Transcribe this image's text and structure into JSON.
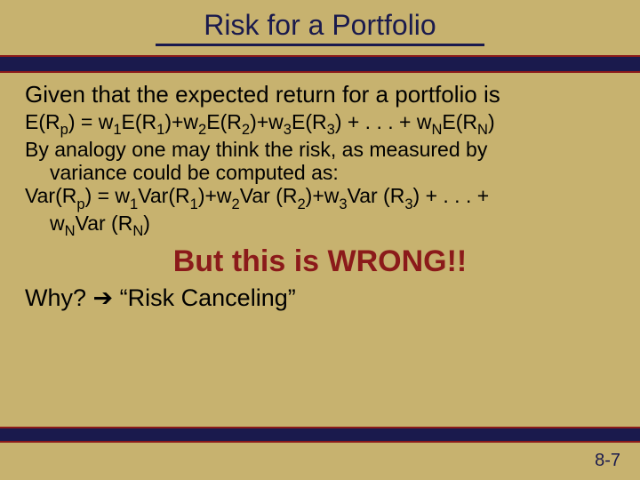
{
  "colors": {
    "background": "#c7b26f",
    "nav_bar": "#1a1a4d",
    "accent_line": "#8b1a1a",
    "title_text": "#1a1a4d",
    "body_text": "#000000",
    "emphasis_text": "#8b1a1a"
  },
  "typography": {
    "font_family": "Arial",
    "title_fontsize": 32,
    "lead_fontsize": 26,
    "body_fontsize": 23,
    "emphasis_fontsize": 34,
    "why_fontsize": 27,
    "pagenum_fontsize": 20
  },
  "title": "Risk for a Portfolio",
  "lead": "Given that the expected return for a portfolio is",
  "formula1_parts": {
    "p1": "E(R",
    "s1": "p",
    "p2": ") = w",
    "s2": "1",
    "p3": "E(R",
    "s3": "1",
    "p4": ")+w",
    "s4": "2",
    "p5": "E(R",
    "s5": "2",
    "p6": ")+w",
    "s6": "3",
    "p7": "E(R",
    "s7": "3",
    "p8": ") + . . . + w",
    "s8": "N",
    "p9": "E(R",
    "s9": "N",
    "p10": ")"
  },
  "analogy_l1": "By analogy one may think the risk, as measured by",
  "analogy_l2": "variance could be computed as:",
  "formula2_parts": {
    "p1": "Var(R",
    "s1": "p",
    "p2": ") = w",
    "s2": "1",
    "p3": "Var(R",
    "s3": "1",
    "p4": ")+w",
    "s4": "2",
    "p5": "Var (R",
    "s5": "2",
    "p6": ")+w",
    "s6": "3",
    "p7": "Var (R",
    "s7": "3",
    "p8": ") + . . .   +"
  },
  "formula2b_parts": {
    "p1": "w",
    "s1": "N",
    "p2": "Var (R",
    "s2": "N",
    "p3": ")"
  },
  "wrong": "But this is WRONG!!",
  "why_prefix": "Why? ",
  "why_arrow": "➔",
  "why_suffix": " “Risk Canceling”",
  "page_num": "8-7"
}
